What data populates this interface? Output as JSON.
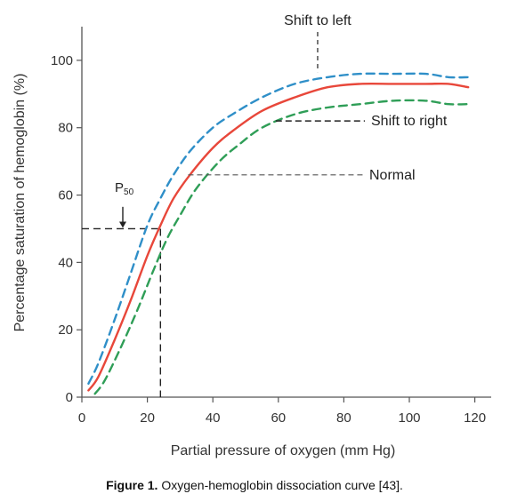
{
  "chart_data": {
    "type": "line",
    "xlabel": "Partial pressure of oxygen (mm Hg)",
    "ylabel": "Percentage saturation of hemoglobin (%)",
    "xlim": [
      0,
      125
    ],
    "ylim": [
      0,
      110
    ],
    "xticks": [
      0,
      20,
      40,
      60,
      80,
      100,
      120
    ],
    "yticks": [
      0,
      20,
      40,
      60,
      80,
      100
    ],
    "grid": false,
    "series": [
      {
        "name": "Normal",
        "color": "#e8473a",
        "style": "solid",
        "x": [
          2,
          5,
          10,
          15,
          20,
          24,
          28,
          33,
          40,
          46,
          55,
          65,
          75,
          85,
          95,
          105,
          112,
          118
        ],
        "y": [
          2,
          6,
          17,
          29,
          42,
          51,
          59,
          66,
          74,
          79,
          85,
          89,
          92,
          93,
          93,
          93,
          93,
          92
        ]
      },
      {
        "name": "Shift to left",
        "color": "#2f8fc8",
        "style": "dashed",
        "x": [
          2,
          5,
          10,
          15,
          20,
          24,
          28,
          33,
          40,
          46,
          55,
          65,
          75,
          85,
          95,
          105,
          112,
          118
        ],
        "y": [
          4,
          10,
          23,
          37,
          51,
          59,
          66,
          73,
          80,
          84,
          89,
          93,
          95,
          96,
          96,
          96,
          95,
          95
        ]
      },
      {
        "name": "Shift to right",
        "color": "#2f9e57",
        "style": "dashed",
        "x": [
          4,
          7,
          12,
          17,
          22,
          26,
          30,
          35,
          42,
          48,
          55,
          65,
          75,
          85,
          95,
          105,
          112,
          118
        ],
        "y": [
          1,
          5,
          15,
          26,
          38,
          47,
          54,
          62,
          70,
          75,
          80,
          84,
          86,
          87,
          88,
          88,
          87,
          87
        ]
      }
    ],
    "annotations": [
      {
        "text": "Shift to left",
        "points_to": {
          "x": 72,
          "y": 96
        }
      },
      {
        "text": "Shift to right",
        "points_to": {
          "x": 60,
          "y": 82
        }
      },
      {
        "text": "Normal",
        "points_to": {
          "x": 33,
          "y": 66
        }
      }
    ],
    "p50": {
      "label": "P",
      "subscript": "50",
      "x": 24,
      "y": 50
    }
  },
  "caption": {
    "bold": "Figure 1.",
    "text": " Oxygen-hemoglobin dissociation curve [43]."
  }
}
